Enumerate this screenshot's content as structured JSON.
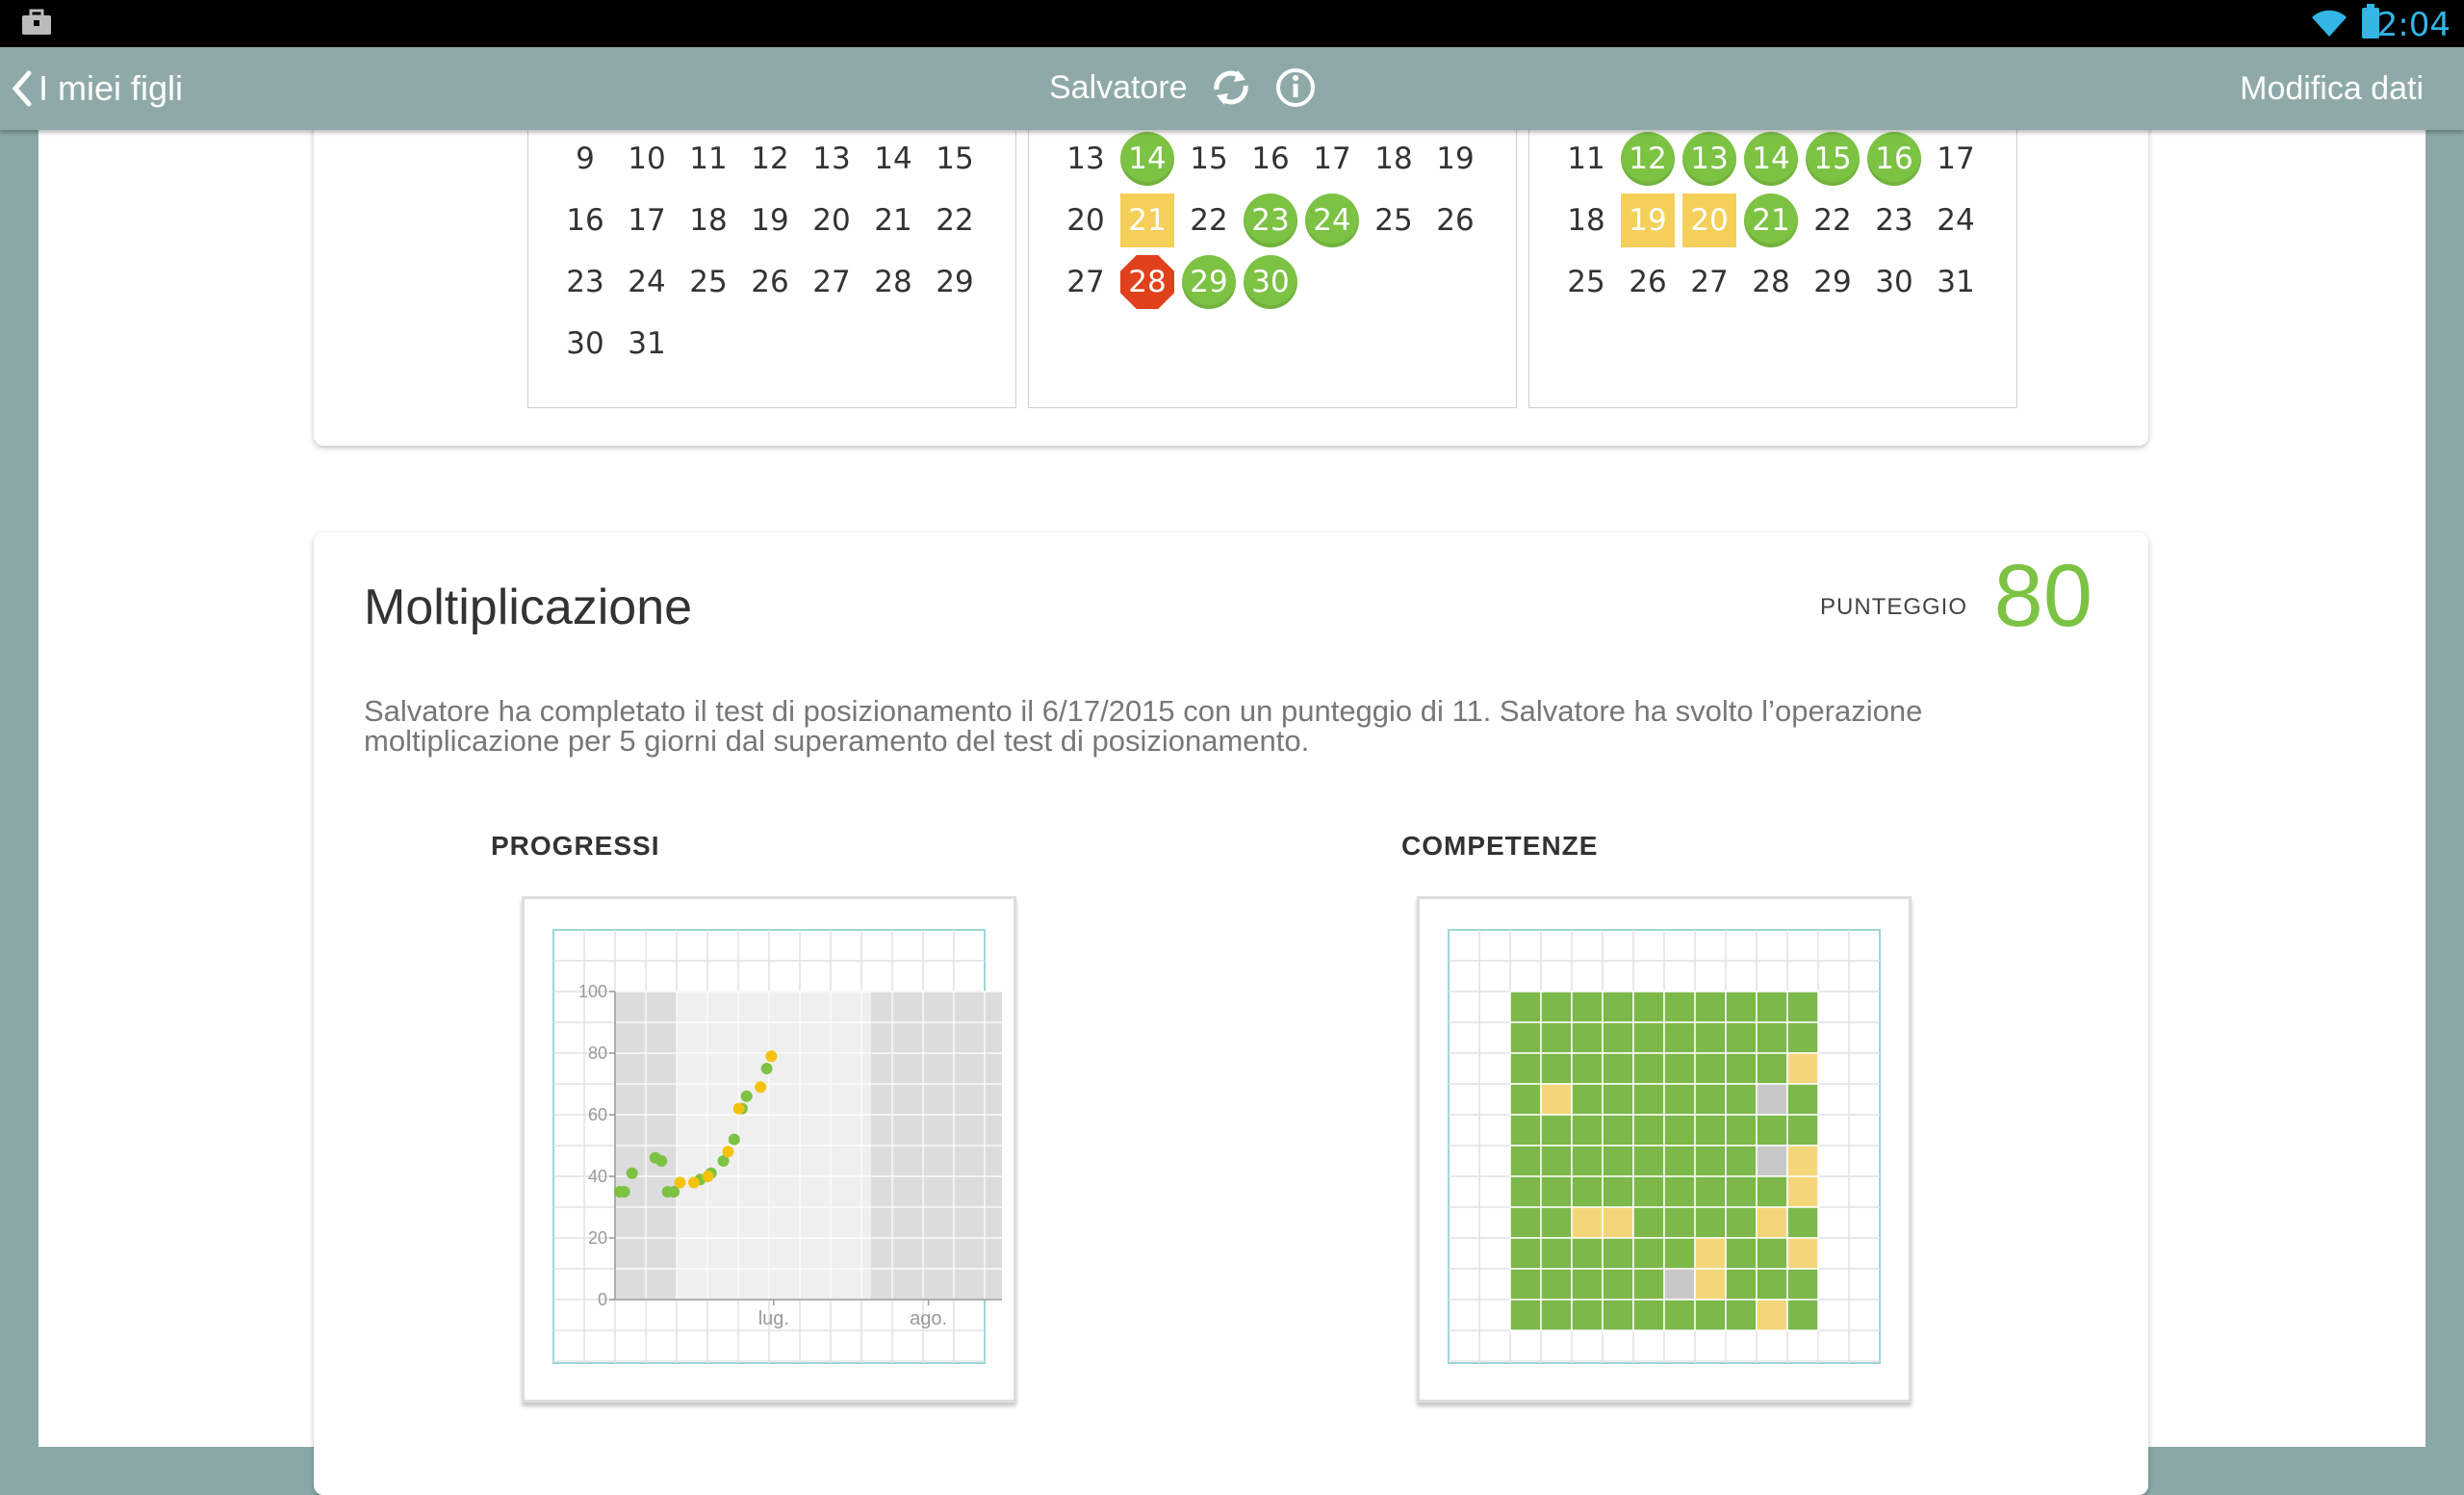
{
  "statusbar": {
    "time": "2:04",
    "icons": [
      "briefcase-icon",
      "wifi-icon",
      "battery-icon"
    ]
  },
  "nav": {
    "back_label": "I miei figli",
    "child_name": "Salvatore",
    "edit_label": "Modifica dati",
    "icons": [
      "back-chevron-icon",
      "refresh-icon",
      "info-icon"
    ]
  },
  "calendar": {
    "months": [
      {
        "rows": [
          [
            "9",
            "10",
            "11",
            "12",
            "13",
            "14",
            "15"
          ],
          [
            "16",
            "17",
            "18",
            "19",
            "20",
            "21",
            "22"
          ],
          [
            "23",
            "24",
            "25",
            "26",
            "27",
            "28",
            "29"
          ],
          [
            "30",
            "31"
          ]
        ],
        "marks": {}
      },
      {
        "rows": [
          [
            "13",
            "14",
            "15",
            "16",
            "17",
            "18",
            "19"
          ],
          [
            "20",
            "21",
            "22",
            "23",
            "24",
            "25",
            "26"
          ],
          [
            "27",
            "28",
            "29",
            "30"
          ]
        ],
        "marks": {
          "14": "green",
          "21": "yellow",
          "23": "green",
          "24": "green",
          "28": "red",
          "29": "green",
          "30": "green"
        }
      },
      {
        "rows": [
          [
            "11",
            "12",
            "13",
            "14",
            "15",
            "16",
            "17"
          ],
          [
            "18",
            "19",
            "20",
            "21",
            "22",
            "23",
            "24"
          ],
          [
            "25",
            "26",
            "27",
            "28",
            "29",
            "30",
            "31"
          ]
        ],
        "marks": {
          "12": "green",
          "13": "green",
          "14": "green",
          "15": "green",
          "16": "green",
          "19": "yellow",
          "20": "yellow",
          "21": "green"
        }
      }
    ],
    "colors": {
      "green": "#7cc243",
      "yellow": "#f4d05a",
      "red": "#e0401b"
    }
  },
  "operation": {
    "title": "Moltiplicazione",
    "score_label": "PUNTEGGIO",
    "score": "80",
    "description": "Salvatore ha completato il test di posizionamento il 6/17/2015 con un punteggio di 11. Salvatore ha svolto l’operazione moltiplicazione per 5 giorni dal superamento del test di posizionamento.",
    "progress_label": "PROGRESSI",
    "skills_label": "COMPETENZE"
  },
  "chart_data": {
    "type": "scatter",
    "title": "",
    "xlabel": "",
    "ylabel": "",
    "ylim": [
      0,
      100
    ],
    "yticks": [
      "0",
      "20",
      "40",
      "60",
      "80",
      "100"
    ],
    "xticks": [
      "lug.",
      "ago."
    ],
    "series": [
      {
        "color": "#7cc243",
        "points": [
          [
            0.3,
            35
          ],
          [
            0.6,
            35
          ],
          [
            1.1,
            41
          ],
          [
            2.6,
            46
          ],
          [
            3.0,
            45
          ],
          [
            3.4,
            35
          ],
          [
            3.8,
            35
          ],
          [
            5.5,
            39
          ],
          [
            6.2,
            41
          ],
          [
            7.0,
            45
          ],
          [
            7.7,
            52
          ],
          [
            8.2,
            62
          ],
          [
            8.5,
            66
          ],
          [
            9.8,
            75
          ]
        ]
      },
      {
        "color": "#f4c20d",
        "points": [
          [
            4.2,
            38
          ],
          [
            5.1,
            38
          ],
          [
            6.0,
            40
          ],
          [
            7.3,
            48
          ],
          [
            8.0,
            62
          ],
          [
            9.4,
            69
          ],
          [
            10.1,
            79
          ]
        ]
      }
    ],
    "xrange": [
      0,
      25
    ]
  },
  "skills_grid": {
    "rows": [
      "gggggggggg",
      "gggggggggg",
      "gggggggggy",
      "gyggggggsg",
      "gggggggggg",
      "ggggggggsy",
      "gggggggggy",
      "ggyyggggyg",
      "ggggggyggy",
      "gggggsyggg",
      "ggggggggyg"
    ],
    "colors": {
      "g": "#7cb84a",
      "y": "#f4d67a",
      "s": "#c8c8c8"
    }
  }
}
